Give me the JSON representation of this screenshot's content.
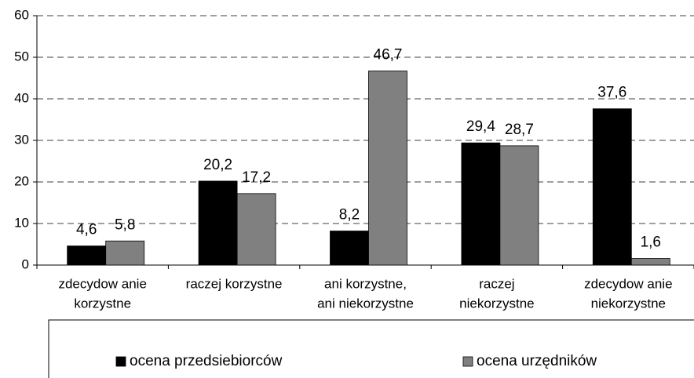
{
  "chart_data": {
    "type": "bar",
    "categories": [
      [
        "zdecydow anie",
        "korzystne"
      ],
      [
        "raczej korzystne"
      ],
      [
        "ani korzystne,",
        "ani niekorzystne"
      ],
      [
        "raczej",
        "niekorzystne"
      ],
      [
        "zdecydow anie",
        "niekorzystne"
      ]
    ],
    "series": [
      {
        "name": "ocena przedsiebiorców",
        "color": "#000000",
        "values": [
          4.6,
          20.2,
          8.2,
          29.4,
          37.6
        ],
        "value_labels": [
          "4,6",
          "20,2",
          "8,2",
          "29,4",
          "37,6"
        ]
      },
      {
        "name": "ocena urzędników",
        "color": "#808080",
        "values": [
          5.8,
          17.2,
          46.7,
          28.7,
          1.6
        ],
        "value_labels": [
          "5,8",
          "17,2",
          "46,7",
          "28,7",
          "1,6"
        ]
      }
    ],
    "ylim": [
      0,
      60
    ],
    "yticks": [
      0,
      10,
      20,
      30,
      40,
      50,
      60
    ],
    "grid": true
  }
}
